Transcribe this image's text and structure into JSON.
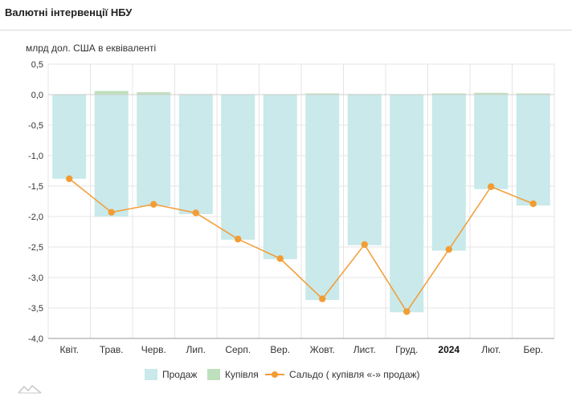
{
  "title": "Валютні інтервенції НБУ",
  "colors": {
    "sales": "#c9e9ea",
    "purchases": "#bfe0bc",
    "balance": "#f39c34",
    "grid": "#e4e4e4",
    "axis": "#555555"
  },
  "chart_data": {
    "type": "bar",
    "ylabel": "млрд дол. США в еквіваленті",
    "ylim": [
      -4.0,
      0.5
    ],
    "ytick_step": 0.5,
    "grid": true,
    "legend_position": "bottom",
    "categories": [
      "Квіт.",
      "Трав.",
      "Черв.",
      "Лип.",
      "Серп.",
      "Вер.",
      "Жовт.",
      "Лист.",
      "Груд.",
      "2024",
      "Лют.",
      "Бер."
    ],
    "bold_categories": [
      "2024"
    ],
    "series": [
      {
        "name": "Продаж",
        "kind": "bar",
        "color": "#c9e9ea",
        "values": [
          -1.38,
          -2.0,
          -1.83,
          -1.96,
          -2.38,
          -2.7,
          -3.37,
          -2.47,
          -3.57,
          -2.56,
          -1.55,
          -1.82
        ]
      },
      {
        "name": "Купівля",
        "kind": "bar",
        "color": "#bfe0bc",
        "values": [
          0.0,
          0.06,
          0.04,
          0.01,
          0.0,
          0.0,
          0.02,
          0.01,
          0.0,
          0.02,
          0.03,
          0.02
        ]
      },
      {
        "name": "Сальдо ( купівля «-» продаж)",
        "kind": "line",
        "color": "#f39c34",
        "values": [
          -1.38,
          -1.93,
          -1.8,
          -1.94,
          -2.37,
          -2.69,
          -3.35,
          -2.46,
          -3.56,
          -2.54,
          -1.51,
          -1.79
        ]
      }
    ]
  }
}
